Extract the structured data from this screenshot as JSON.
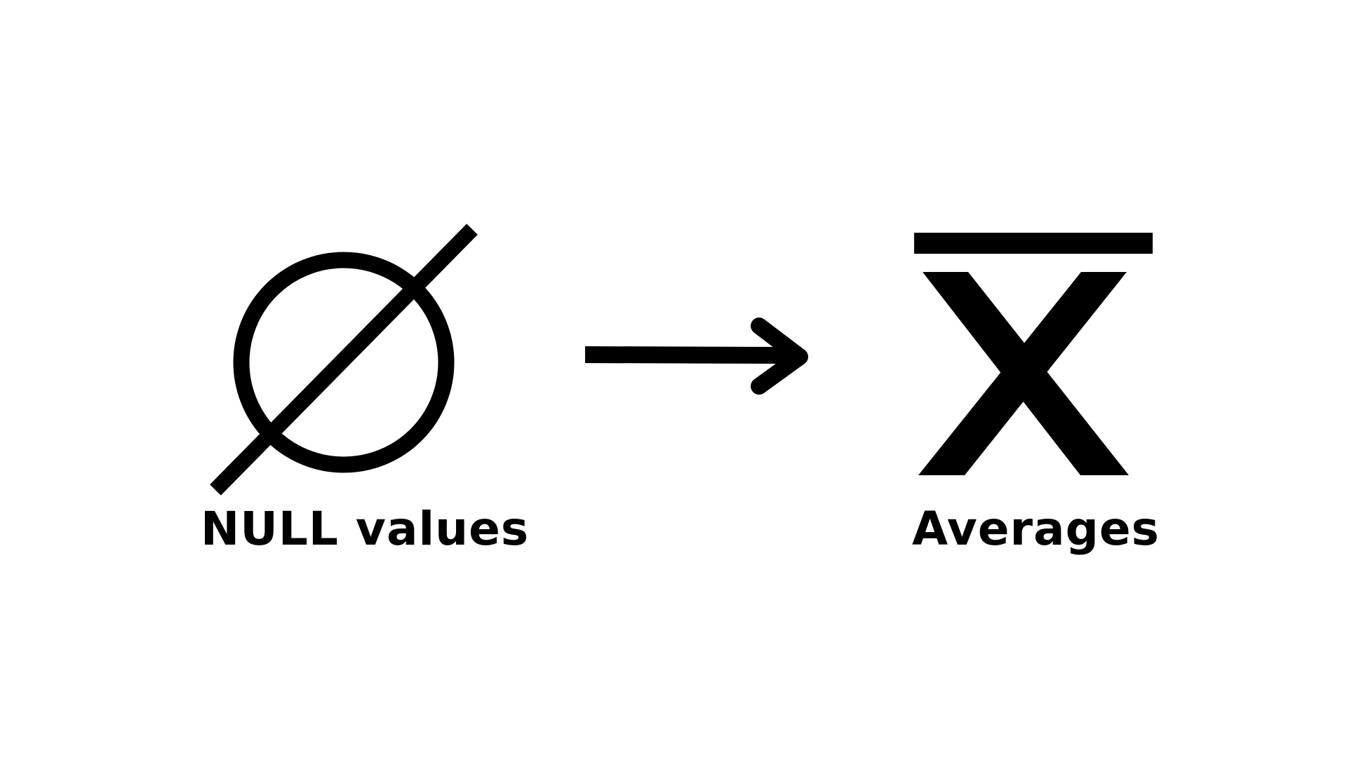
{
  "diagram": {
    "left": {
      "label": "NULL values",
      "icon": "empty-set-icon"
    },
    "connector": {
      "icon": "arrow-right-icon"
    },
    "right": {
      "label": "Averages",
      "icon": "x-bar-mean-icon"
    },
    "colors": {
      "background": "#ffffff",
      "ink": "#000000"
    }
  }
}
